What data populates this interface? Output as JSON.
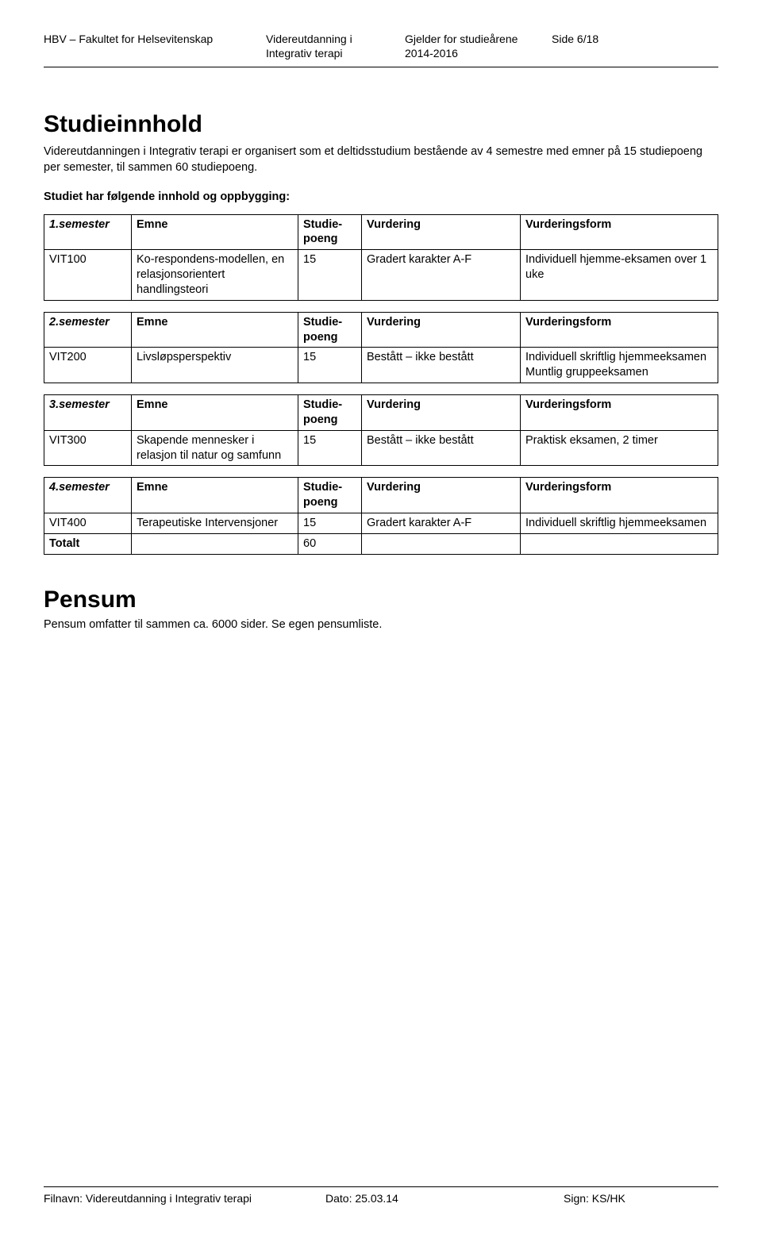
{
  "header": {
    "org": "HBV – Fakultet for Helsevitenskap",
    "program_line1": "Videreutdanning i",
    "program_line2": "Integrativ terapi",
    "years_line1": "Gjelder for studieårene",
    "years_line2": "2014-2016",
    "page": "Side 6/18"
  },
  "title": "Studieinnhold",
  "intro": "Videreutdanningen i Integrativ terapi er organisert som et deltidsstudium bestående av 4 semestre med emner på 15 studiepoeng per semester, til sammen 60 studiepoeng.",
  "subhead": "Studiet har følgende innhold og oppbygging:",
  "col_labels": {
    "emne": "Emne",
    "sp": "Studie-poeng",
    "vurdering": "Vurdering",
    "form": "Vurderingsform"
  },
  "sem1": {
    "label": "1.semester",
    "code": "VIT100",
    "emne": "Ko-respondens-modellen, en relasjonsorientert handlingsteori",
    "sp": "15",
    "vurdering": "Gradert karakter A-F",
    "form": "Individuell hjemme-eksamen over 1 uke"
  },
  "sem2": {
    "label": "2.semester",
    "code": "VIT200",
    "emne": "Livsløpsperspektiv",
    "sp": "15",
    "vurdering": "Bestått – ikke bestått",
    "form": "Individuell skriftlig hjemmeeksamen Muntlig gruppeeksamen"
  },
  "sem3": {
    "label": "3.semester",
    "code": "VIT300",
    "emne": "Skapende mennesker i relasjon til natur og samfunn",
    "sp": "15",
    "vurdering": "Bestått – ikke bestått",
    "form": "Praktisk eksamen, 2 timer"
  },
  "sem4": {
    "label": "4.semester",
    "code": "VIT400",
    "emne": "Terapeutiske Intervensjoner",
    "sp": "15",
    "vurdering": "Gradert karakter A-F",
    "form": "Individuell skriftlig hjemmeeksamen",
    "total_label": "Totalt",
    "total_sp": "60"
  },
  "pensum": {
    "heading": "Pensum",
    "text": "Pensum omfatter til sammen ca. 6000 sider. Se egen pensumliste."
  },
  "footer": {
    "filename": "Filnavn: Videreutdanning i Integrativ terapi",
    "date": "Dato: 25.03.14",
    "sign": "Sign: KS/HK"
  }
}
